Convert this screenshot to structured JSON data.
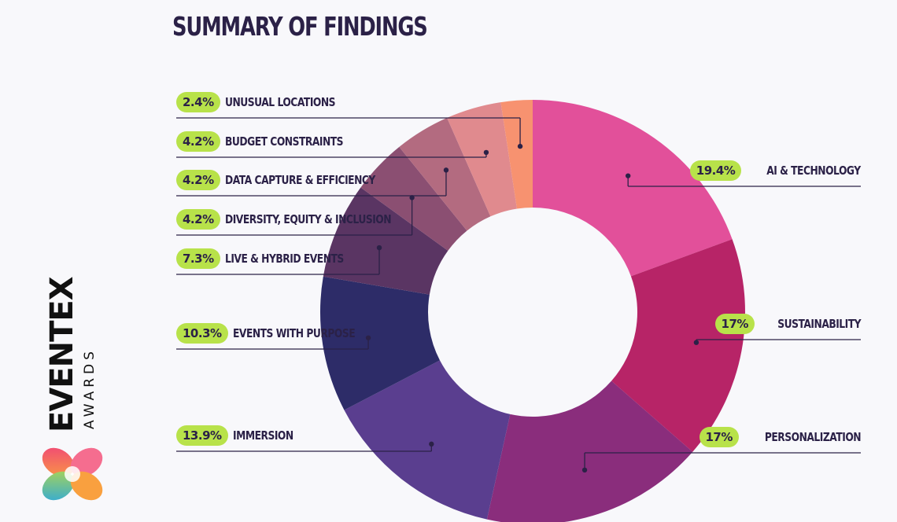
{
  "page": {
    "title": "SUMMARY OF FINDINGS"
  },
  "brand": {
    "name": "EVENTEX",
    "sub": "AWARDS"
  },
  "colors": {
    "pill": "#b8e24a",
    "text": "#2b2147",
    "leader": "#2b2147"
  },
  "chart_data": {
    "type": "pie",
    "title": "SUMMARY OF FINDINGS",
    "donut": true,
    "slices": [
      {
        "label": "AI & TECHNOLOGY",
        "pct": "19.4%",
        "value": 19.4,
        "color": "#e2509a"
      },
      {
        "label": "SUSTAINABILITY",
        "pct": "17%",
        "value": 17,
        "color": "#b72467"
      },
      {
        "label": "PERSONALIZATION",
        "pct": "17%",
        "value": 17,
        "color": "#8a2d7c"
      },
      {
        "label": "IMMERSION",
        "pct": "13.9%",
        "value": 13.9,
        "color": "#5a3e8f"
      },
      {
        "label": "EVENTS WITH PURPOSE",
        "pct": "10.3%",
        "value": 10.3,
        "color": "#2d2c68"
      },
      {
        "label": "LIVE & HYBRID EVENTS",
        "pct": "7.3%",
        "value": 7.3,
        "color": "#5a3563"
      },
      {
        "label": "DIVERSITY, EQUITY & INCLUSION",
        "pct": "4.2%",
        "value": 4.2,
        "color": "#8b4f72"
      },
      {
        "label": "DATA CAPTURE & EFFICIENCY",
        "pct": "4.2%",
        "value": 4.2,
        "color": "#b36b80"
      },
      {
        "label": "BUDGET CONSTRAINTS",
        "pct": "4.2%",
        "value": 4.2,
        "color": "#e08a8e"
      },
      {
        "label": "UNUSUAL LOCATIONS",
        "pct": "2.4%",
        "value": 2.4,
        "color": "#f79270"
      }
    ]
  }
}
